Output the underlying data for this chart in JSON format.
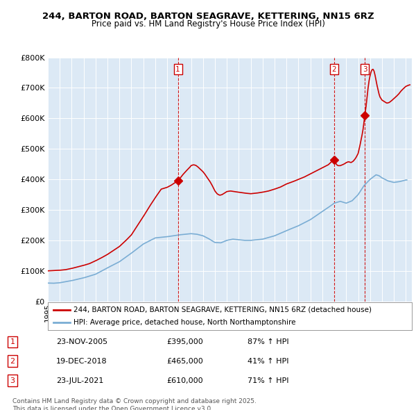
{
  "title": "244, BARTON ROAD, BARTON SEAGRAVE, KETTERING, NN15 6RZ",
  "subtitle": "Price paid vs. HM Land Registry's House Price Index (HPI)",
  "plot_bg_color": "#dce9f5",
  "sale_color": "#cc0000",
  "hpi_color": "#7aadd4",
  "sale_label": "244, BARTON ROAD, BARTON SEAGRAVE, KETTERING, NN15 6RZ (detached house)",
  "hpi_label": "HPI: Average price, detached house, North Northamptonshire",
  "yticks": [
    0,
    100000,
    200000,
    300000,
    400000,
    500000,
    600000,
    700000,
    800000
  ],
  "ytick_labels": [
    "£0",
    "£100K",
    "£200K",
    "£300K",
    "£400K",
    "£500K",
    "£600K",
    "£700K",
    "£800K"
  ],
  "xmin": 1995.0,
  "xmax": 2025.5,
  "ymin": 0,
  "ymax": 800000,
  "transactions": [
    {
      "id": 1,
      "date": 2005.9,
      "price": 395000,
      "label": "1",
      "date_str": "23-NOV-2005",
      "price_str": "£395,000",
      "hpi_str": "87% ↑ HPI"
    },
    {
      "id": 2,
      "date": 2018.97,
      "price": 465000,
      "label": "2",
      "date_str": "19-DEC-2018",
      "price_str": "£465,000",
      "hpi_str": "41% ↑ HPI"
    },
    {
      "id": 3,
      "date": 2021.56,
      "price": 610000,
      "label": "3",
      "date_str": "23-JUL-2021",
      "price_str": "£610,000",
      "hpi_str": "71% ↑ HPI"
    }
  ],
  "footer_text": "Contains HM Land Registry data © Crown copyright and database right 2025.\nThis data is licensed under the Open Government Licence v3.0."
}
